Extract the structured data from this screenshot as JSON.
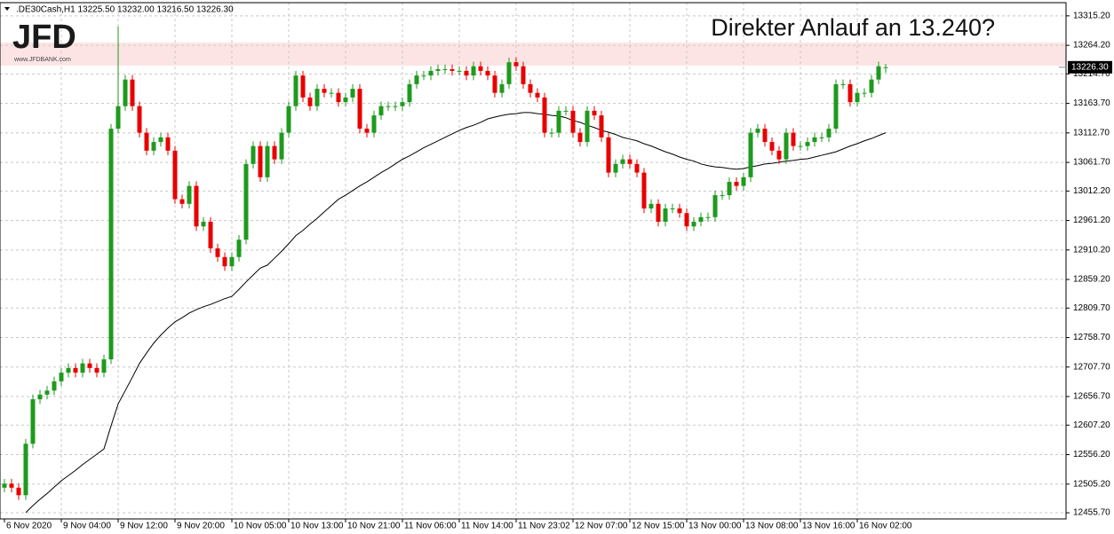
{
  "logo": {
    "text": "JFD",
    "url": "www.JFDBANK.com"
  },
  "chart_data": {
    "type": "candlestick",
    "title": ".DE30Cash,H1  13225.50 13232.00 13216.50 13226.30",
    "annotation": "Direkter Anlauf an 13.240?",
    "categories": [
      "6 Nov 2020",
      null,
      null,
      null,
      null,
      null,
      null,
      null,
      "9 Nov 04:00",
      null,
      null,
      null,
      null,
      null,
      null,
      null,
      "9 Nov 12:00",
      null,
      null,
      null,
      null,
      null,
      null,
      null,
      "9 Nov 20:00",
      null,
      null,
      null,
      null,
      null,
      null,
      null,
      "10 Nov 05:00",
      null,
      null,
      null,
      null,
      null,
      null,
      null,
      "10 Nov 13:00",
      null,
      null,
      null,
      null,
      null,
      null,
      null,
      "10 Nov 21:00",
      null,
      null,
      null,
      null,
      null,
      null,
      null,
      "11 Nov 06:00",
      null,
      null,
      null,
      null,
      null,
      null,
      null,
      "11 Nov 14:00",
      null,
      null,
      null,
      null,
      null,
      null,
      null,
      "11 Nov 23:02",
      null,
      null,
      null,
      null,
      null,
      null,
      null,
      "12 Nov 07:00",
      null,
      null,
      null,
      null,
      null,
      null,
      null,
      "12 Nov 15:00",
      null,
      null,
      null,
      null,
      null,
      null,
      null,
      "13 Nov 00:00",
      null,
      null,
      null,
      null,
      null,
      null,
      null,
      "13 Nov 08:00",
      null,
      null,
      null,
      null,
      null,
      null,
      null,
      "13 Nov 16:00",
      null,
      null,
      null,
      null,
      null,
      null,
      null,
      "16 Nov 02:00",
      null,
      null,
      null,
      null
    ],
    "open": [
      12499,
      12506,
      12499,
      12486,
      12575,
      12652,
      12660,
      12667,
      12683,
      12698,
      12706,
      12698,
      12714,
      12706,
      12698,
      12721,
      13120,
      13159,
      13205,
      13159,
      13113,
      13082,
      13097,
      13105,
      13082,
      12998,
      12990,
      13021,
      12951,
      12959,
      12913,
      12898,
      12882,
      12898,
      12928,
      13059,
      13090,
      13036,
      13090,
      13067,
      13113,
      13159,
      13212,
      13174,
      13159,
      13189,
      13182,
      13182,
      13166,
      13174,
      13189,
      13120,
      13113,
      13143,
      13159,
      13159,
      13159,
      13166,
      13197,
      13212,
      13212,
      13220,
      13223,
      13223,
      13220,
      13220,
      13212,
      13228,
      13220,
      13212,
      13182,
      13197,
      13235,
      13228,
      13197,
      13182,
      13174,
      13113,
      13113,
      13151,
      13151,
      13113,
      13097,
      13151,
      13143,
      13105,
      13044,
      13059,
      13067,
      13059,
      13044,
      12982,
      12990,
      12959,
      12982,
      12982,
      12974,
      12951,
      12959,
      12967,
      12967,
      13005,
      13005,
      13028,
      13021,
      13036,
      13113,
      13120,
      13097,
      13082,
      13067,
      13113,
      13090,
      13090,
      13097,
      13105,
      13105,
      13120,
      13197,
      13197,
      13166,
      13182,
      13182,
      13205,
      13225.5
    ],
    "high": [
      12514,
      12514,
      12507,
      12583,
      12660,
      12668,
      12675,
      12691,
      12706,
      12714,
      12714,
      12722,
      12722,
      12714,
      12729,
      13128,
      13297,
      13213,
      13213,
      13167,
      13121,
      13105,
      13113,
      13113,
      13090,
      13006,
      13029,
      13029,
      12967,
      12967,
      12921,
      12906,
      12906,
      12936,
      13067,
      13098,
      13098,
      13098,
      13098,
      13121,
      13167,
      13220,
      13220,
      13182,
      13197,
      13197,
      13190,
      13190,
      13182,
      13197,
      13197,
      13128,
      13151,
      13167,
      13167,
      13167,
      13174,
      13205,
      13220,
      13220,
      13228,
      13231,
      13231,
      13231,
      13228,
      13228,
      13236,
      13236,
      13228,
      13220,
      13205,
      13243,
      13243,
      13236,
      13205,
      13190,
      13182,
      13121,
      13159,
      13159,
      13159,
      13121,
      13159,
      13159,
      13151,
      13113,
      13067,
      13075,
      13075,
      13067,
      13052,
      12998,
      12998,
      12990,
      12990,
      12990,
      12982,
      12967,
      12975,
      12975,
      13013,
      13013,
      13036,
      13036,
      13044,
      13121,
      13128,
      13128,
      13105,
      13090,
      13121,
      13121,
      13098,
      13105,
      13113,
      13113,
      13128,
      13205,
      13205,
      13205,
      13190,
      13190,
      13213,
      13236,
      13232
    ],
    "low": [
      12491,
      12491,
      12478,
      12478,
      12567,
      12644,
      12652,
      12659,
      12675,
      12690,
      12690,
      12690,
      12698,
      12690,
      12690,
      12713,
      13112,
      13151,
      13151,
      13105,
      13074,
      13074,
      13089,
      13074,
      12990,
      12982,
      12982,
      12943,
      12943,
      12905,
      12890,
      12874,
      12874,
      12890,
      12920,
      13051,
      13028,
      13028,
      13059,
      13059,
      13105,
      13151,
      13166,
      13151,
      13151,
      13174,
      13174,
      13158,
      13158,
      13166,
      13112,
      13105,
      13105,
      13135,
      13151,
      13151,
      13151,
      13158,
      13189,
      13204,
      13204,
      13212,
      13215,
      13212,
      13212,
      13204,
      13204,
      13212,
      13204,
      13174,
      13174,
      13189,
      13220,
      13189,
      13174,
      13166,
      13105,
      13105,
      13105,
      13143,
      13105,
      13089,
      13089,
      13135,
      13097,
      13036,
      13036,
      13051,
      13051,
      13036,
      12974,
      12974,
      12951,
      12951,
      12974,
      12966,
      12943,
      12943,
      12951,
      12959,
      12959,
      12997,
      12997,
      13013,
      13013,
      13028,
      13105,
      13089,
      13074,
      13059,
      13059,
      13082,
      13082,
      13082,
      13089,
      13097,
      13097,
      13112,
      13189,
      13158,
      13158,
      13174,
      13174,
      13197,
      13216.5
    ],
    "close": [
      12506,
      12499,
      12486,
      12575,
      12652,
      12660,
      12667,
      12683,
      12698,
      12706,
      12698,
      12714,
      12706,
      12698,
      12721,
      13120,
      13159,
      13205,
      13159,
      13113,
      13082,
      13097,
      13105,
      13082,
      12998,
      12990,
      13021,
      12951,
      12959,
      12913,
      12898,
      12882,
      12898,
      12928,
      13059,
      13090,
      13036,
      13090,
      13067,
      13113,
      13159,
      13212,
      13174,
      13159,
      13189,
      13182,
      13182,
      13166,
      13174,
      13189,
      13120,
      13113,
      13143,
      13159,
      13159,
      13159,
      13166,
      13197,
      13212,
      13212,
      13220,
      13223,
      13223,
      13220,
      13220,
      13212,
      13228,
      13220,
      13212,
      13182,
      13197,
      13235,
      13228,
      13197,
      13182,
      13174,
      13113,
      13113,
      13151,
      13151,
      13113,
      13097,
      13151,
      13143,
      13105,
      13044,
      13059,
      13067,
      13059,
      13044,
      12982,
      12990,
      12959,
      12982,
      12982,
      12974,
      12951,
      12959,
      12967,
      12967,
      13005,
      13005,
      13028,
      13021,
      13036,
      13113,
      13120,
      13097,
      13082,
      13067,
      13113,
      13090,
      13090,
      13097,
      13105,
      13105,
      13120,
      13197,
      13197,
      13166,
      13182,
      13182,
      13205,
      13228,
      13226.3
    ],
    "ma": {
      "color": "#000000",
      "values": [
        null,
        null,
        null,
        12456,
        12468,
        12479,
        12489,
        12500,
        12511,
        12520,
        12529,
        12539,
        12548,
        12557,
        12566,
        12606,
        12644,
        12667,
        12690,
        12714,
        12732,
        12749,
        12763,
        12775,
        12786,
        12793,
        12801,
        12807,
        12812,
        12816,
        12821,
        12826,
        12830,
        12842,
        12855,
        12867,
        12879,
        12884,
        12896,
        12908,
        12921,
        12935,
        12944,
        12955,
        12965,
        12976,
        12987,
        12998,
        13005,
        13013,
        13021,
        13028,
        13036,
        13044,
        13051,
        13059,
        13067,
        13073,
        13080,
        13087,
        13093,
        13099,
        13105,
        13111,
        13117,
        13122,
        13126,
        13131,
        13137,
        13140,
        13143,
        13145,
        13146,
        13148,
        13148,
        13146,
        13145,
        13143,
        13142,
        13139,
        13134,
        13131,
        13126,
        13122,
        13117,
        13114,
        13110,
        13105,
        13102,
        13099,
        13094,
        13090,
        13085,
        13080,
        13076,
        13071,
        13067,
        13064,
        13059,
        13056,
        13054,
        13053,
        13051,
        13050,
        13051,
        13054,
        13056,
        13059,
        13060,
        13062,
        13064,
        13065,
        13067,
        13068,
        13071,
        13074,
        13077,
        13080,
        13085,
        13090,
        13094,
        13099,
        13103,
        13108,
        13113
      ]
    },
    "up_color": "#1e9a1e",
    "down_color": "#e80000",
    "zone": {
      "from": 13229,
      "to": 13269,
      "color": "#fde4e4"
    },
    "price_marker": {
      "value": 13226.3,
      "label": "13226.30"
    },
    "ylim": [
      12445,
      13338
    ],
    "yticks": [
      {
        "value": 13315.2,
        "label": "13315.20"
      },
      {
        "value": 13264.2,
        "label": "13264.20"
      },
      {
        "value": 13214.7,
        "label": "13214.70"
      },
      {
        "value": 13163.7,
        "label": "13163.70"
      },
      {
        "value": 13112.7,
        "label": "13112.70"
      },
      {
        "value": 13061.7,
        "label": "13061.70"
      },
      {
        "value": 13012.2,
        "label": "13012.20"
      },
      {
        "value": 12961.2,
        "label": "12961.20"
      },
      {
        "value": 12910.2,
        "label": "12910.20"
      },
      {
        "value": 12859.2,
        "label": "12859.20"
      },
      {
        "value": 12809.7,
        "label": "12809.70"
      },
      {
        "value": 12758.7,
        "label": "12758.70"
      },
      {
        "value": 12707.7,
        "label": "12707.70"
      },
      {
        "value": 12656.7,
        "label": "12656.70"
      },
      {
        "value": 12607.2,
        "label": "12607.20"
      },
      {
        "value": 12556.2,
        "label": "12556.20"
      },
      {
        "value": 12505.2,
        "label": "12505.20"
      },
      {
        "value": 12455.7,
        "label": "12455.70"
      }
    ],
    "grid": true
  }
}
